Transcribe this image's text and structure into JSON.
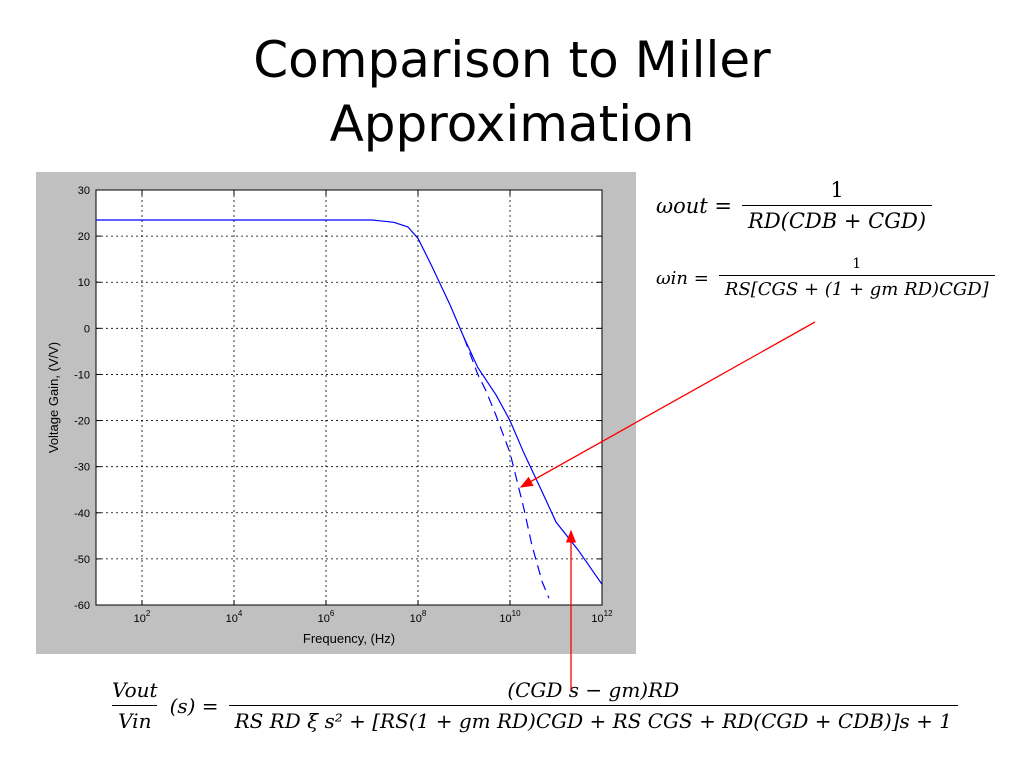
{
  "slide": {
    "title_line1": "Comparison to Miller",
    "title_line2": "Approximation"
  },
  "equations": {
    "omega_out": {
      "lhs": "ωout =",
      "numerator": "1",
      "denominator": "RD(CDB + CGD)"
    },
    "omega_in": {
      "lhs": "ωin =",
      "numerator": "1",
      "denominator": "RS[CGS + (1 + gm RD)CGD]"
    },
    "transfer": {
      "lhs_numerator": "Vout",
      "lhs_denominator": "Vin",
      "lhs_suffix": "(s) =",
      "numerator": "(CGD s − gm)RD",
      "denominator": "RS RD ξ s² + [RS(1 + gm RD)CGD + RS CGS + RD(CGD + CDB)]s + 1"
    }
  },
  "colors": {
    "background": "#c0c0c0",
    "plot": "#ffffff",
    "curve": "#0000ff",
    "arrow": "#ff0000",
    "grid": "#000000"
  },
  "chart_data": {
    "type": "line",
    "title": "",
    "xlabel": "Frequency, (Hz)",
    "ylabel": "Voltage Gain, (V/V)",
    "xscale": "log",
    "xlim": [
      10,
      1000000000000
    ],
    "ylim": [
      -60,
      30
    ],
    "grid": true,
    "x_ticks": [
      100,
      10000,
      1000000,
      100000000,
      10000000000,
      1000000000000
    ],
    "x_tick_labels": [
      {
        "base": "10",
        "exp": "2"
      },
      {
        "base": "10",
        "exp": "4"
      },
      {
        "base": "10",
        "exp": "6"
      },
      {
        "base": "10",
        "exp": "8"
      },
      {
        "base": "10",
        "exp": "10"
      },
      {
        "base": "10",
        "exp": "12"
      }
    ],
    "y_ticks": [
      30,
      20,
      10,
      0,
      -10,
      -20,
      -30,
      -40,
      -50,
      -60
    ],
    "y_tick_labels": [
      "30",
      "20",
      "10",
      "0",
      "-10",
      "-20",
      "-30",
      "-40",
      "-50",
      "-60"
    ],
    "series": [
      {
        "style": "solid",
        "x": [
          10,
          1000000,
          10000000,
          30000000,
          60000000,
          100000000,
          200000000,
          500000000,
          1000000000,
          2000000000,
          5000000000,
          10000000000,
          20000000000,
          50000000000,
          100000000000,
          300000000000,
          1000000000000
        ],
        "y": [
          23.5,
          23.5,
          23.5,
          23.0,
          22.0,
          19.5,
          13.5,
          5.0,
          -2.0,
          -8.5,
          -14.5,
          -20.0,
          -27.0,
          -35.5,
          -42.0,
          -48.0,
          -55.5
        ]
      },
      {
        "style": "dashed",
        "x": [
          1000000000,
          2000000000,
          3000000000,
          5000000000,
          10000000000,
          20000000000,
          30000000000,
          50000000000,
          70000000000
        ],
        "y": [
          -2.0,
          -10.0,
          -13.5,
          -19.0,
          -27.0,
          -39.0,
          -47.0,
          -55.0,
          -58.5
        ]
      }
    ]
  }
}
